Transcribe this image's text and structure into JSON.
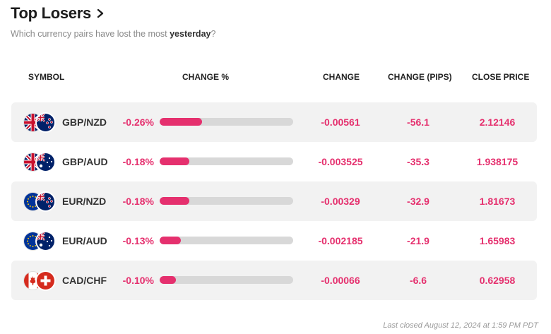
{
  "header": {
    "title": "Top Losers",
    "subtitle_pre": "Which currency pairs have lost the most ",
    "subtitle_bold": "yesterday",
    "subtitle_post": "?"
  },
  "columns": {
    "symbol": "SYMBOL",
    "change_pct": "CHANGE %",
    "change": "CHANGE",
    "change_pips": "CHANGE (PIPS)",
    "close_price": "CLOSE PRICE"
  },
  "rows": [
    {
      "symbol": "GBP/NZD",
      "flags": [
        "gb-flag-icon",
        "nz-flag-icon"
      ],
      "change_pct": "-0.26%",
      "bar_fraction": 0.32,
      "change": "-0.00561",
      "pips": "-56.1",
      "close": "2.12146"
    },
    {
      "symbol": "GBP/AUD",
      "flags": [
        "gb-flag-icon",
        "au-flag-icon"
      ],
      "change_pct": "-0.18%",
      "bar_fraction": 0.22,
      "change": "-0.003525",
      "pips": "-35.3",
      "close": "1.938175"
    },
    {
      "symbol": "EUR/NZD",
      "flags": [
        "eu-flag-icon",
        "nz-flag-icon"
      ],
      "change_pct": "-0.18%",
      "bar_fraction": 0.22,
      "change": "-0.00329",
      "pips": "-32.9",
      "close": "1.81673"
    },
    {
      "symbol": "EUR/AUD",
      "flags": [
        "eu-flag-icon",
        "au-flag-icon"
      ],
      "change_pct": "-0.13%",
      "bar_fraction": 0.16,
      "change": "-0.002185",
      "pips": "-21.9",
      "close": "1.65983"
    },
    {
      "symbol": "CAD/CHF",
      "flags": [
        "ca-flag-icon",
        "ch-flag-icon"
      ],
      "change_pct": "-0.10%",
      "bar_fraction": 0.12,
      "change": "-0.00066",
      "pips": "-6.6",
      "close": "0.62958"
    }
  ],
  "footer": {
    "last_closed": "Last closed August 12, 2024 at 1:59 PM PDT"
  },
  "colors": {
    "accent": "#e5306e",
    "row_bg": "#f2f2f2",
    "bar_track": "#d8d8d8"
  }
}
